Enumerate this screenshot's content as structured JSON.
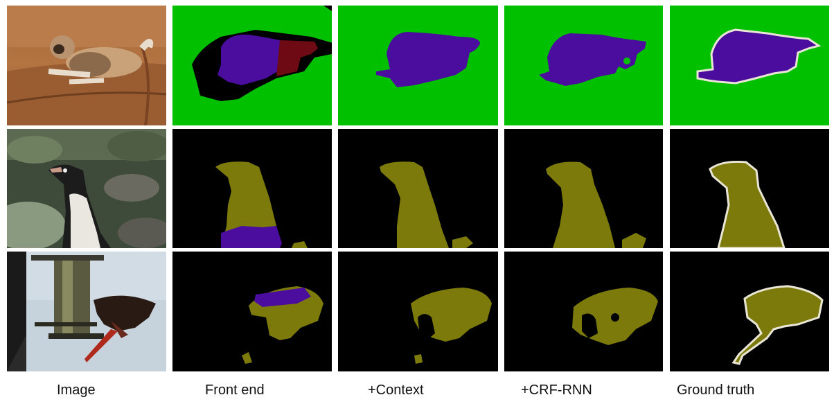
{
  "figure": {
    "columns": [
      {
        "id": "image",
        "label": "Image"
      },
      {
        "id": "front-end",
        "label": "Front end"
      },
      {
        "id": "context",
        "label": "+Context"
      },
      {
        "id": "crf-rnn",
        "label": "+CRF-RNN"
      },
      {
        "id": "ground-truth",
        "label": "Ground truth"
      }
    ],
    "rows": [
      {
        "id": "dog-on-sofa",
        "subject": "dog",
        "class_color": "#4b0d9e",
        "background_color": "#00c000"
      },
      {
        "id": "penguin",
        "subject": "penguin",
        "class_color": "#7d7a0c",
        "background_color": "#000000"
      },
      {
        "id": "bird-at-feeder",
        "subject": "bird",
        "class_color": "#7d7a0c",
        "background_color": "#000000"
      }
    ],
    "colors": {
      "dog_class": "#4b0d9e",
      "bird_class": "#7d7a0c",
      "wrong_class_red": "#6e0a14",
      "background_green": "#00c000",
      "background_black": "#000000",
      "boundary": "#e9e6d6"
    }
  }
}
